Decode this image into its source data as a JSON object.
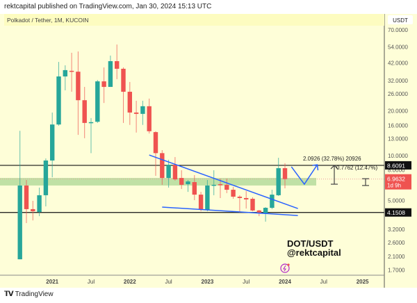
{
  "header": {
    "published": "rektcapital published on TradingView.com, Jan 30, 2024 15:13 UTC"
  },
  "footer": {
    "brand": "TradingView",
    "logo_text": "TV"
  },
  "chart_data": {
    "type": "candlestick",
    "symbol_title": "Polkadot / Tether, 1M, KUCOIN",
    "currency": "USDT",
    "y_scale": "log",
    "ylim": [
      1.55,
      80
    ],
    "grid": false,
    "colors": {
      "up": "#26a69a",
      "down": "#ef5350",
      "background": "#fefed8",
      "trendline": "#2962ff",
      "zone": "#b9dea0"
    },
    "y_ticks": [
      "70.0000",
      "54.0000",
      "42.0000",
      "32.0000",
      "26.0000",
      "20.0000",
      "16.0000",
      "13.0000",
      "10.0000",
      "8.0000",
      "5.0000",
      "3.2000",
      "2.6000",
      "2.1000",
      "1.7000"
    ],
    "x_ticks": [
      {
        "date": "2021-01",
        "label": "2021",
        "bold": true
      },
      {
        "date": "2021-07",
        "label": "Jul",
        "bold": false
      },
      {
        "date": "2022-01",
        "label": "2022",
        "bold": true
      },
      {
        "date": "2022-07",
        "label": "Jul",
        "bold": false
      },
      {
        "date": "2023-01",
        "label": "2023",
        "bold": true
      },
      {
        "date": "2023-07",
        "label": "Jul",
        "bold": false
      },
      {
        "date": "2024-01",
        "label": "2024",
        "bold": true
      },
      {
        "date": "2024-07",
        "label": "Jul",
        "bold": false
      },
      {
        "date": "2025-01",
        "label": "2025",
        "bold": true
      }
    ],
    "candles": [
      {
        "t": "2020-08",
        "o": 2.01,
        "h": 14.7,
        "l": 2.01,
        "c": 6.3
      },
      {
        "t": "2020-09",
        "o": 6.3,
        "h": 6.86,
        "l": 3.52,
        "c": 4.37
      },
      {
        "t": "2020-10",
        "o": 4.37,
        "h": 4.97,
        "l": 3.67,
        "c": 4.23
      },
      {
        "t": "2020-11",
        "o": 4.18,
        "h": 6.1,
        "l": 3.92,
        "c": 5.42
      },
      {
        "t": "2020-12",
        "o": 5.42,
        "h": 9.58,
        "l": 4.56,
        "c": 9.28
      },
      {
        "t": "2021-01",
        "o": 9.28,
        "h": 19.5,
        "l": 7.16,
        "c": 16.2
      },
      {
        "t": "2021-02",
        "o": 16.2,
        "h": 42.7,
        "l": 15.9,
        "c": 34.1
      },
      {
        "t": "2021-03",
        "o": 34.1,
        "h": 40.5,
        "l": 27.5,
        "c": 37.6
      },
      {
        "t": "2021-04",
        "o": 37.2,
        "h": 49.2,
        "l": 26.9,
        "c": 36.7
      },
      {
        "t": "2021-05",
        "o": 36.7,
        "h": 50.2,
        "l": 13.8,
        "c": 23.6
      },
      {
        "t": "2021-06",
        "o": 23.6,
        "h": 29.0,
        "l": 13.1,
        "c": 16.6
      },
      {
        "t": "2021-07",
        "o": 16.6,
        "h": 17.9,
        "l": 10.4,
        "c": 16.8
      },
      {
        "t": "2021-08",
        "o": 16.9,
        "h": 32.3,
        "l": 16.6,
        "c": 31.6
      },
      {
        "t": "2021-09",
        "o": 31.6,
        "h": 39.2,
        "l": 22.6,
        "c": 29.0
      },
      {
        "t": "2021-10",
        "o": 29.0,
        "h": 47.1,
        "l": 29.0,
        "c": 43.2
      },
      {
        "t": "2021-11",
        "o": 43.2,
        "h": 55.9,
        "l": 32.7,
        "c": 38.4
      },
      {
        "t": "2021-12",
        "o": 38.4,
        "h": 39.2,
        "l": 16.6,
        "c": 26.9
      },
      {
        "t": "2022-01",
        "o": 26.9,
        "h": 31.3,
        "l": 16.1,
        "c": 19.5
      },
      {
        "t": "2022-02",
        "o": 19.5,
        "h": 23.4,
        "l": 14.3,
        "c": 19.1
      },
      {
        "t": "2022-03",
        "o": 19.1,
        "h": 23.4,
        "l": 16.1,
        "c": 21.5
      },
      {
        "t": "2022-04",
        "o": 21.5,
        "h": 24.2,
        "l": 14.1,
        "c": 14.6
      },
      {
        "t": "2022-05",
        "o": 14.4,
        "h": 14.6,
        "l": 7.32,
        "c": 10.4
      },
      {
        "t": "2022-06",
        "o": 10.4,
        "h": 10.9,
        "l": 6.37,
        "c": 7.08
      },
      {
        "t": "2022-07",
        "o": 7.08,
        "h": 9.38,
        "l": 6.1,
        "c": 8.69
      },
      {
        "t": "2022-08",
        "o": 8.69,
        "h": 9.79,
        "l": 6.79,
        "c": 6.93
      },
      {
        "t": "2022-09",
        "o": 7.08,
        "h": 7.98,
        "l": 5.97,
        "c": 6.37
      },
      {
        "t": "2022-10",
        "o": 6.43,
        "h": 6.86,
        "l": 5.71,
        "c": 6.71
      },
      {
        "t": "2022-11",
        "o": 6.64,
        "h": 7.4,
        "l": 5.02,
        "c": 5.47
      },
      {
        "t": "2022-12",
        "o": 5.47,
        "h": 5.71,
        "l": 4.23,
        "c": 4.32
      },
      {
        "t": "2023-01",
        "o": 4.32,
        "h": 6.86,
        "l": 4.23,
        "c": 6.3
      },
      {
        "t": "2023-02",
        "o": 6.3,
        "h": 7.98,
        "l": 5.42,
        "c": 6.37
      },
      {
        "t": "2023-03",
        "o": 6.43,
        "h": 7.01,
        "l": 5.19,
        "c": 6.37
      },
      {
        "t": "2023-04",
        "o": 6.37,
        "h": 7.01,
        "l": 5.6,
        "c": 5.9
      },
      {
        "t": "2023-05",
        "o": 5.9,
        "h": 6.16,
        "l": 5.13,
        "c": 5.3
      },
      {
        "t": "2023-06",
        "o": 5.3,
        "h": 5.42,
        "l": 4.14,
        "c": 5.19
      },
      {
        "t": "2023-07",
        "o": 5.19,
        "h": 5.78,
        "l": 4.41,
        "c": 5.08
      },
      {
        "t": "2023-08",
        "o": 5.13,
        "h": 5.25,
        "l": 4.23,
        "c": 4.28
      },
      {
        "t": "2023-09",
        "o": 4.28,
        "h": 4.32,
        "l": 3.92,
        "c": 4.14
      },
      {
        "t": "2023-10",
        "o": 4.09,
        "h": 4.51,
        "l": 3.6,
        "c": 4.46
      },
      {
        "t": "2023-11",
        "o": 4.46,
        "h": 5.9,
        "l": 4.37,
        "c": 5.47
      },
      {
        "t": "2023-12",
        "o": 5.42,
        "h": 9.68,
        "l": 5.36,
        "c": 8.24
      },
      {
        "t": "2024-01",
        "o": 8.24,
        "h": 8.89,
        "l": 6.03,
        "c": 6.9632
      }
    ],
    "horizontal_levels": [
      {
        "price": 8.6091,
        "label": "8.6091"
      },
      {
        "price": 4.1508,
        "label": "4.1508"
      }
    ],
    "last_price": {
      "price": 6.9632,
      "label": "6.9632",
      "countdown": "1d 9h"
    },
    "zone": {
      "from": 6.3,
      "to": 7.08,
      "start": "2020-08",
      "end": "2024-04"
    },
    "trendlines": [
      {
        "from": {
          "t": "2022-04",
          "p": 10.1
        },
        "to": {
          "t": "2024-03",
          "p": 4.41
        }
      },
      {
        "from": {
          "t": "2022-06",
          "p": 4.51
        },
        "to": {
          "t": "2024-03",
          "p": 3.96
        }
      }
    ],
    "projection_path": [
      {
        "t": "2024-02",
        "p": 8.42
      },
      {
        "t": "2024-04",
        "p": 6.43
      },
      {
        "t": "2024-06",
        "p": 8.69
      }
    ],
    "annotations": {
      "measure_1": "2.0926 (32.78%) 20926",
      "measure_2": "0.7762 (12.47%)",
      "watermark_1": "DOT/USDT",
      "watermark_2": "@rektcapital"
    }
  }
}
